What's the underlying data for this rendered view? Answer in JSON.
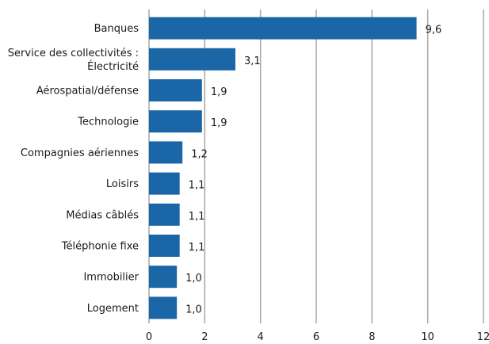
{
  "chart_data": {
    "type": "bar",
    "orientation": "horizontal",
    "categories": [
      "Banques",
      "Service des collectivités : Électricité",
      "Aérospatial/défense",
      "Technologie",
      "Compagnies aériennes",
      "Loisirs",
      "Médias câblés",
      "Téléphonie fixe",
      "Immobilier",
      "Logement"
    ],
    "category_lines": [
      [
        "Banques"
      ],
      [
        "Service des collectivités :",
        "Électricité"
      ],
      [
        "Aérospatial/défense"
      ],
      [
        "Technologie"
      ],
      [
        "Compagnies aériennes"
      ],
      [
        "Loisirs"
      ],
      [
        "Médias câblés"
      ],
      [
        "Téléphonie fixe"
      ],
      [
        "Immobilier"
      ],
      [
        "Logement"
      ]
    ],
    "values": [
      9.6,
      3.1,
      1.9,
      1.9,
      1.2,
      1.1,
      1.1,
      1.1,
      1.0,
      1.0
    ],
    "value_labels": [
      "9,6",
      "3,1",
      "1,9",
      "1,9",
      "1,2",
      "1,1",
      "1,1",
      "1,1",
      "1,0",
      "1,0"
    ],
    "xlim": [
      0,
      12
    ],
    "xticks": [
      0,
      2,
      4,
      6,
      8,
      10,
      12
    ],
    "xtick_labels": [
      "0",
      "2",
      "4",
      "6",
      "8",
      "10",
      "12"
    ],
    "grid": "vertical",
    "bar_color": "#1b66a6",
    "title": "",
    "xlabel": "",
    "ylabel": ""
  }
}
